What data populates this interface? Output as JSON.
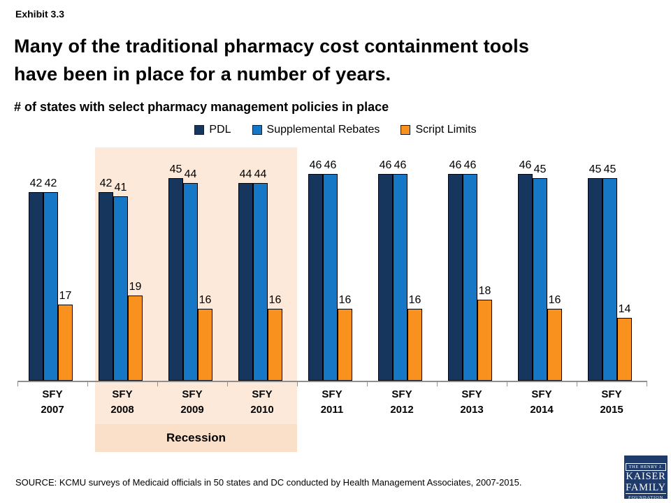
{
  "exhibit_label": "Exhibit 3.3",
  "title_line1": "Many of the traditional pharmacy cost containment tools",
  "title_line2": "have been in place for a number of years.",
  "subtitle": "# of states with select pharmacy management policies in place",
  "source": "SOURCE: KCMU surveys of Medicaid officials in 50 states and DC conducted by Health Management Associates, 2007-2015.",
  "colors": {
    "pdl": "#17365D",
    "supplemental_rebates": "#1577C5",
    "script_limits": "#F8911D",
    "recession_band": "#FCE9D9",
    "recession_strip": "#FADFC9",
    "axis": "#8E8E8E",
    "logo_navy": "#1F3B6C"
  },
  "recession": {
    "label": "Recession",
    "start_index": 1,
    "end_index": 3
  },
  "chart_data": {
    "type": "bar",
    "title": "# of states with select pharmacy management policies in place",
    "categories": [
      "SFY 2007",
      "SFY 2008",
      "SFY 2009",
      "SFY 2010",
      "SFY 2011",
      "SFY 2012",
      "SFY 2013",
      "SFY 2014",
      "SFY 2015"
    ],
    "series": [
      {
        "name": "PDL",
        "color": "#17365D",
        "values": [
          42,
          42,
          45,
          44,
          46,
          46,
          46,
          46,
          45
        ]
      },
      {
        "name": "Supplemental Rebates",
        "color": "#1577C5",
        "values": [
          42,
          41,
          44,
          44,
          46,
          46,
          46,
          45,
          45
        ]
      },
      {
        "name": "Script Limits",
        "color": "#F8911D",
        "values": [
          17,
          19,
          16,
          16,
          16,
          16,
          18,
          16,
          14
        ]
      }
    ],
    "xlabel": "",
    "ylabel": "",
    "ylim": [
      0,
      52
    ],
    "grid": false,
    "legend_position": "top",
    "data_labels": true,
    "annotations": [
      {
        "text": "Recession",
        "covers": [
          "SFY 2008",
          "SFY 2009",
          "SFY 2010"
        ]
      }
    ]
  },
  "logo": {
    "top": "THE HENRY J.",
    "line1": "KAISER",
    "line2": "FAMILY",
    "bottom": "FOUNDATION"
  }
}
